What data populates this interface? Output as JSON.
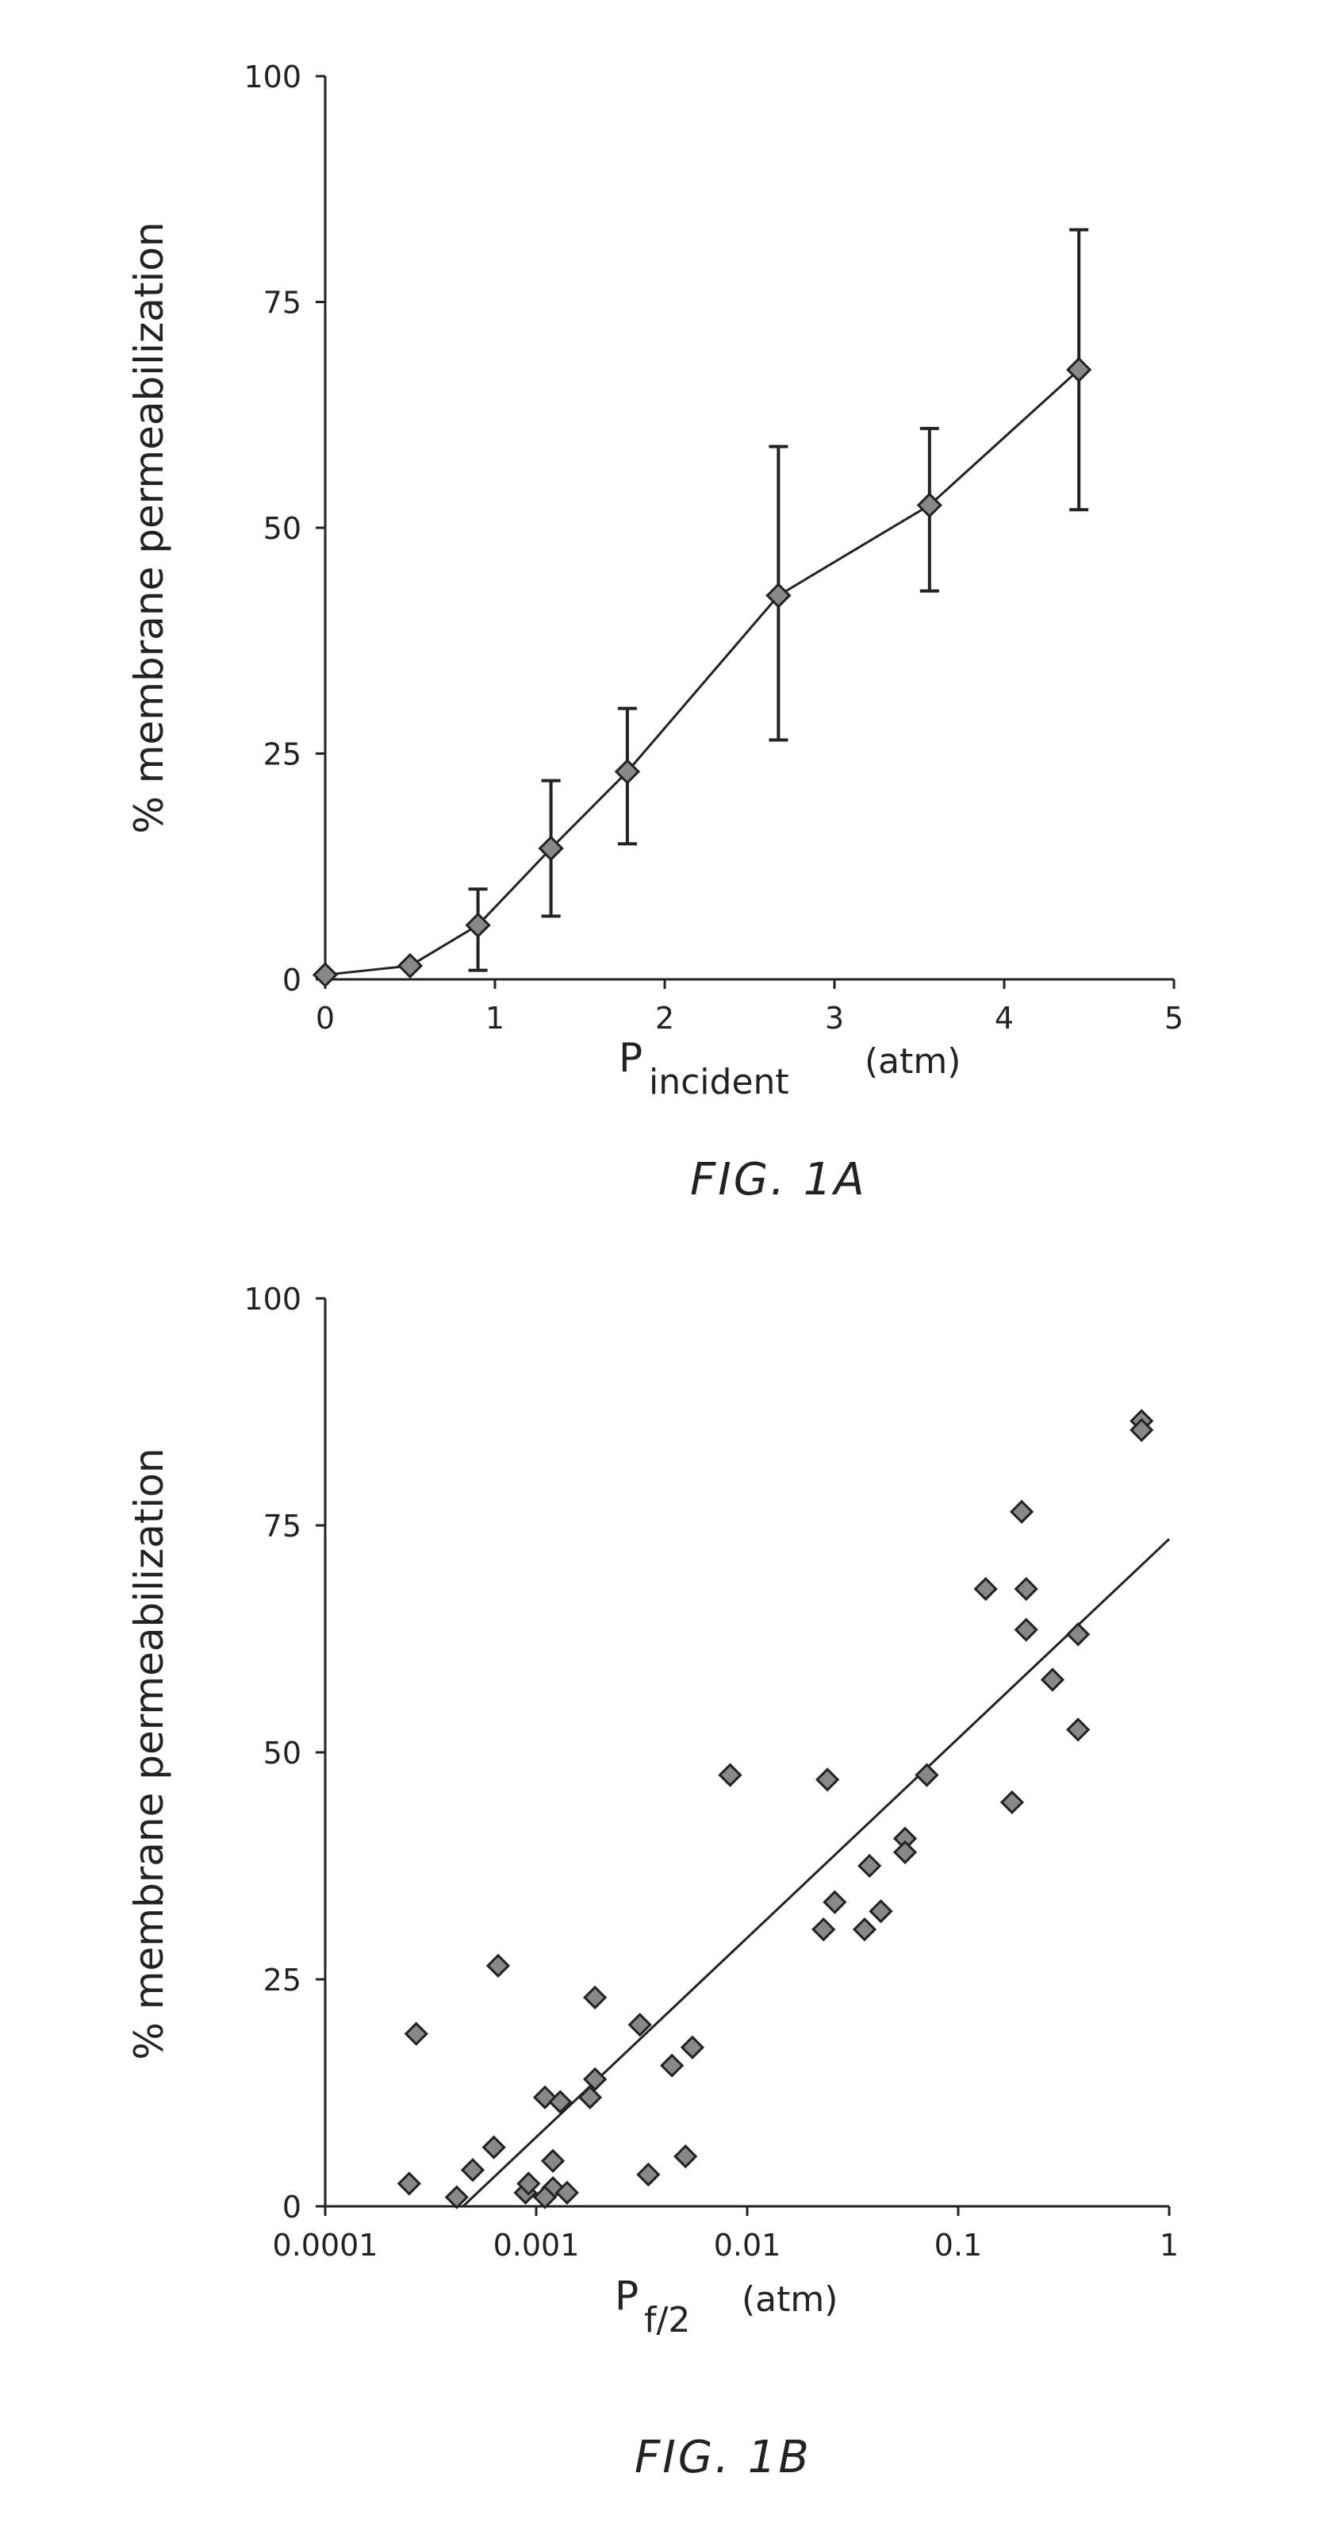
{
  "chart_data": [
    {
      "type": "line",
      "figure_label": "FIG. 1A",
      "xlabel_main": "P",
      "xlabel_sub": "incident",
      "xlabel_unit": "(atm)",
      "ylabel": "% membrane permeabilization",
      "xlim": [
        0,
        5
      ],
      "ylim": [
        0,
        100
      ],
      "xticks": [
        "0",
        "1",
        "2",
        "3",
        "4",
        "5"
      ],
      "yticks": [
        "0",
        "25",
        "50",
        "75",
        "100"
      ],
      "grid": false,
      "series": [
        {
          "x": [
            0,
            0.5,
            0.9,
            1.33,
            1.78,
            2.67,
            3.56,
            4.44
          ],
          "y": [
            0.5,
            1.5,
            6,
            14.5,
            23,
            42.5,
            52.5,
            67.5
          ],
          "error_low": [
            null,
            null,
            1,
            7,
            15,
            26.5,
            43,
            52
          ],
          "error_high": [
            null,
            null,
            10,
            22,
            30,
            59,
            61,
            83
          ]
        }
      ],
      "color": "#222222"
    },
    {
      "type": "scatter",
      "figure_label": "FIG. 1B",
      "xlabel_main": "P",
      "xlabel_sub": "f/2",
      "xlabel_unit": "(atm)",
      "ylabel": "% membrane permeabilization",
      "xscale": "log",
      "xlim": [
        0.0001,
        1
      ],
      "ylim": [
        0,
        100
      ],
      "xticks": [
        "0.0001",
        "0.001",
        "0.01",
        "0.1",
        "1"
      ],
      "yticks": [
        "0",
        "25",
        "50",
        "75",
        "100"
      ],
      "grid": false,
      "points": {
        "x": [
          0.00027,
          0.00066,
          0.0019,
          0.0031,
          0.0011,
          0.0013,
          0.0019,
          0.0018,
          0.0044,
          0.0055,
          0.0083,
          0.024,
          0.071,
          0.056,
          0.056,
          0.038,
          0.026,
          0.023,
          0.036,
          0.043,
          0.18,
          0.2,
          0.135,
          0.21,
          0.21,
          0.37,
          0.28,
          0.37,
          0.74,
          0.74,
          0.00025,
          0.00042,
          0.0005,
          0.00063,
          0.00089,
          0.00092,
          0.0012,
          0.0012,
          0.0014,
          0.0011,
          0.0034,
          0.0051
        ],
        "y": [
          19,
          26.5,
          23,
          20,
          12,
          11.5,
          14,
          12,
          15.5,
          17.5,
          47.5,
          47,
          47.5,
          40.5,
          39,
          37.5,
          33.5,
          30.5,
          30.5,
          32.5,
          44.5,
          76.5,
          68,
          68,
          63.5,
          63,
          58,
          52.5,
          86.5,
          85.5,
          2.5,
          1,
          4,
          6.5,
          1.5,
          2.5,
          5,
          2,
          1.5,
          1,
          3.5,
          5.5
        ]
      },
      "fit_line": {
        "x": [
          0.00045,
          1
        ],
        "y": [
          0,
          73.5
        ]
      },
      "color": "#222222"
    }
  ]
}
